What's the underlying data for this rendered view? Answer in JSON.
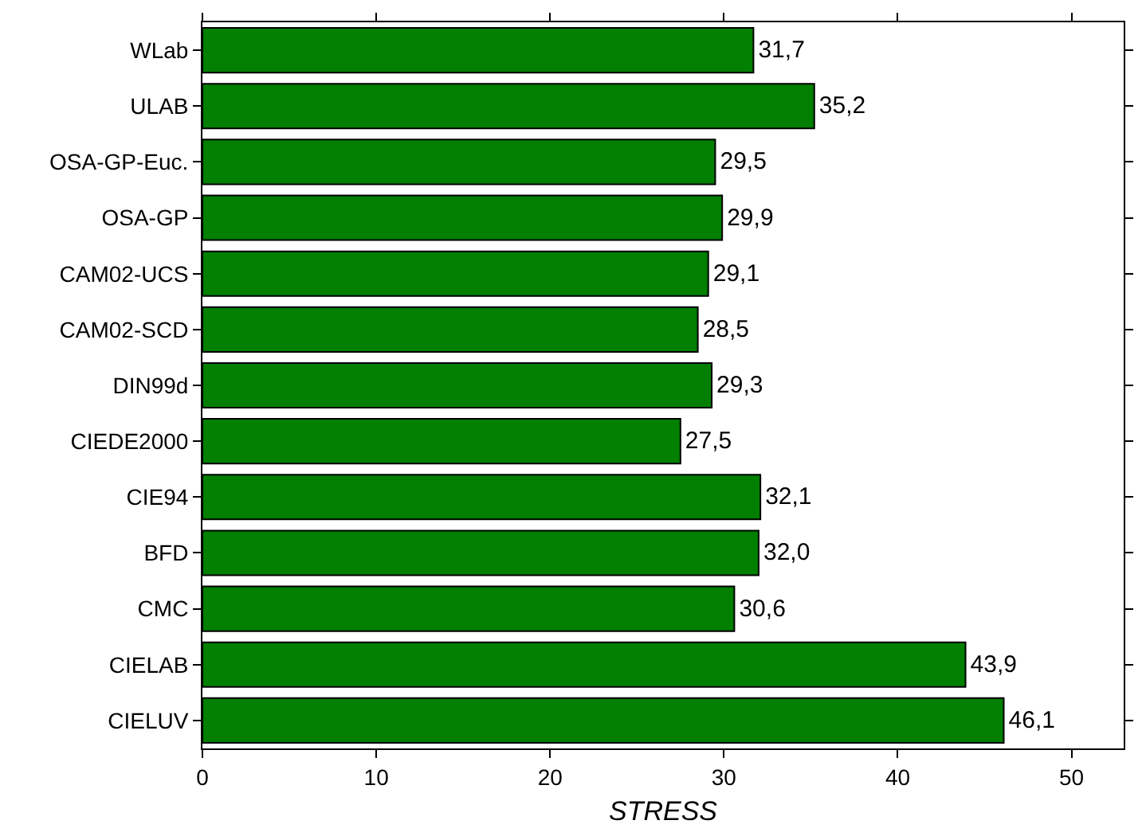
{
  "chart_data": {
    "type": "bar",
    "orientation": "horizontal",
    "xlabel": "STRESS",
    "categories": [
      "WLab",
      "ULAB",
      "OSA-GP-Euc.",
      "OSA-GP",
      "CAM02-UCS",
      "CAM02-SCD",
      "DIN99d",
      "CIEDE2000",
      "CIE94",
      "BFD",
      "CMC",
      "CIELAB",
      "CIELUV"
    ],
    "values": [
      31.7,
      35.2,
      29.5,
      29.9,
      29.1,
      28.5,
      29.3,
      27.5,
      32.1,
      32.0,
      30.6,
      43.9,
      46.1
    ],
    "value_labels": [
      "31,7",
      "35,2",
      "29,5",
      "29,9",
      "29,1",
      "28,5",
      "29,3",
      "27,5",
      "32,1",
      "32,0",
      "30,6",
      "43,9",
      "46,1"
    ],
    "color": "#007f00",
    "xlim": [
      0,
      53
    ],
    "xticks": [
      0,
      10,
      20,
      30,
      40,
      50
    ]
  }
}
